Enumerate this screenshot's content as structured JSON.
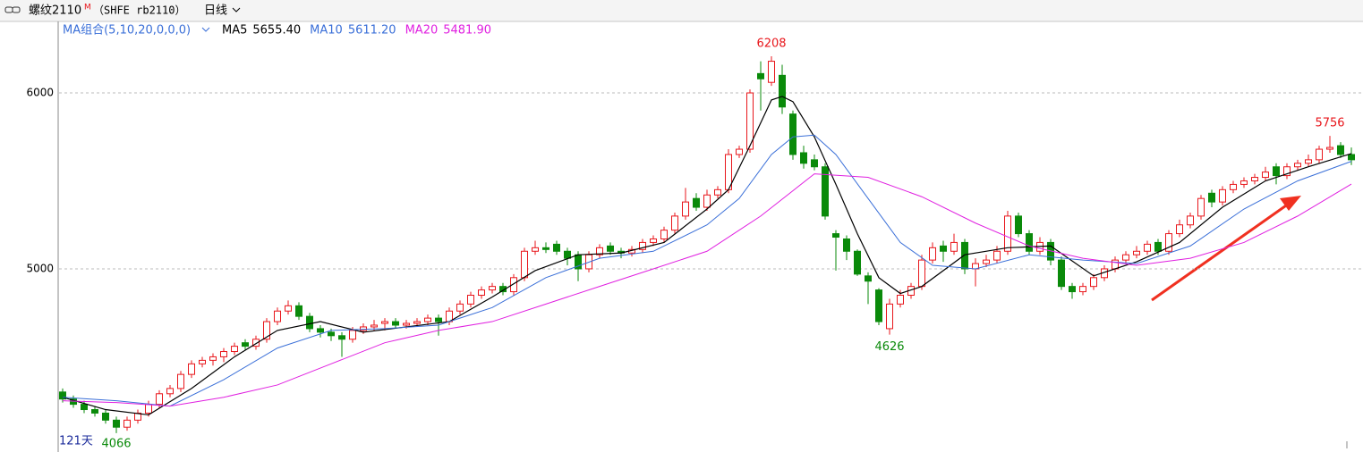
{
  "header": {
    "symbol": "螺纹2110",
    "flag": "M",
    "exchange": "（SHFE rb2110）",
    "period": "日线"
  },
  "chart_data": {
    "type": "candlestick",
    "ma_group": "MA组合(5,10,20,0,0,0)",
    "days_label": "121天",
    "ylim": [
      3964,
      6386
    ],
    "yticks": [
      5000,
      6000
    ],
    "grid": true,
    "up_color": "#e8161b",
    "down_color": "#0a8a0a",
    "candles": [
      [
        4300,
        4320,
        4240,
        4260
      ],
      [
        4260,
        4280,
        4210,
        4230
      ],
      [
        4230,
        4250,
        4180,
        4200
      ],
      [
        4200,
        4220,
        4160,
        4180
      ],
      [
        4180,
        4200,
        4120,
        4140
      ],
      [
        4140,
        4160,
        4066,
        4100
      ],
      [
        4100,
        4160,
        4080,
        4140
      ],
      [
        4140,
        4200,
        4120,
        4180
      ],
      [
        4180,
        4250,
        4160,
        4230
      ],
      [
        4230,
        4310,
        4210,
        4290
      ],
      [
        4290,
        4340,
        4270,
        4320
      ],
      [
        4320,
        4420,
        4300,
        4400
      ],
      [
        4400,
        4480,
        4380,
        4460
      ],
      [
        4460,
        4500,
        4440,
        4480
      ],
      [
        4480,
        4520,
        4450,
        4500
      ],
      [
        4500,
        4550,
        4470,
        4530
      ],
      [
        4530,
        4580,
        4510,
        4560
      ],
      [
        4580,
        4600,
        4540,
        4560
      ],
      [
        4560,
        4620,
        4540,
        4600
      ],
      [
        4600,
        4720,
        4580,
        4700
      ],
      [
        4700,
        4780,
        4680,
        4760
      ],
      [
        4760,
        4820,
        4740,
        4790
      ],
      [
        4790,
        4810,
        4710,
        4730
      ],
      [
        4730,
        4750,
        4640,
        4660
      ],
      [
        4660,
        4680,
        4610,
        4640
      ],
      [
        4640,
        4660,
        4590,
        4620
      ],
      [
        4620,
        4640,
        4500,
        4600
      ],
      [
        4600,
        4670,
        4580,
        4650
      ],
      [
        4650,
        4690,
        4630,
        4670
      ],
      [
        4670,
        4710,
        4650,
        4680
      ],
      [
        4690,
        4720,
        4650,
        4700
      ],
      [
        4700,
        4720,
        4660,
        4680
      ],
      [
        4680,
        4710,
        4660,
        4690
      ],
      [
        4690,
        4720,
        4670,
        4700
      ],
      [
        4700,
        4740,
        4680,
        4720
      ],
      [
        4720,
        4740,
        4620,
        4700
      ],
      [
        4700,
        4780,
        4680,
        4760
      ],
      [
        4760,
        4820,
        4740,
        4800
      ],
      [
        4800,
        4870,
        4780,
        4850
      ],
      [
        4850,
        4900,
        4830,
        4880
      ],
      [
        4880,
        4920,
        4860,
        4900
      ],
      [
        4900,
        4920,
        4850,
        4870
      ],
      [
        4870,
        4970,
        4850,
        4950
      ],
      [
        4950,
        5120,
        4930,
        5100
      ],
      [
        5100,
        5160,
        5080,
        5120
      ],
      [
        5120,
        5150,
        5090,
        5110
      ],
      [
        5140,
        5160,
        5080,
        5100
      ],
      [
        5100,
        5120,
        5020,
        5060
      ],
      [
        5080,
        5100,
        4930,
        5000
      ],
      [
        5000,
        5100,
        4980,
        5080
      ],
      [
        5080,
        5140,
        5060,
        5120
      ],
      [
        5130,
        5150,
        5080,
        5100
      ],
      [
        5100,
        5120,
        5060,
        5090
      ],
      [
        5090,
        5130,
        5070,
        5110
      ],
      [
        5110,
        5170,
        5090,
        5150
      ],
      [
        5150,
        5190,
        5130,
        5170
      ],
      [
        5170,
        5240,
        5150,
        5220
      ],
      [
        5220,
        5320,
        5200,
        5300
      ],
      [
        5300,
        5460,
        5280,
        5380
      ],
      [
        5400,
        5430,
        5330,
        5350
      ],
      [
        5350,
        5450,
        5330,
        5420
      ],
      [
        5420,
        5470,
        5400,
        5450
      ],
      [
        5450,
        5680,
        5430,
        5650
      ],
      [
        5650,
        5700,
        5630,
        5680
      ],
      [
        5680,
        6020,
        5660,
        6000
      ],
      [
        6110,
        6180,
        5900,
        6080
      ],
      [
        6060,
        6208,
        6040,
        6180
      ],
      [
        6100,
        6160,
        5880,
        5920
      ],
      [
        5880,
        5900,
        5620,
        5650
      ],
      [
        5660,
        5700,
        5570,
        5600
      ],
      [
        5620,
        5650,
        5560,
        5580
      ],
      [
        5580,
        5600,
        5280,
        5300
      ],
      [
        5200,
        5220,
        4990,
        5180
      ],
      [
        5170,
        5190,
        5050,
        5100
      ],
      [
        5100,
        5110,
        4960,
        4970
      ],
      [
        4960,
        4980,
        4800,
        4930
      ],
      [
        4880,
        4890,
        4680,
        4700
      ],
      [
        4660,
        4830,
        4626,
        4800
      ],
      [
        4800,
        4880,
        4780,
        4850
      ],
      [
        4850,
        4920,
        4830,
        4900
      ],
      [
        4900,
        5080,
        4880,
        5050
      ],
      [
        5050,
        5150,
        5030,
        5120
      ],
      [
        5130,
        5160,
        5040,
        5100
      ],
      [
        5100,
        5200,
        5080,
        5150
      ],
      [
        5150,
        5170,
        4970,
        5000
      ],
      [
        5000,
        5060,
        4900,
        5030
      ],
      [
        5030,
        5080,
        5010,
        5050
      ],
      [
        5050,
        5130,
        5030,
        5100
      ],
      [
        5100,
        5330,
        5080,
        5300
      ],
      [
        5300,
        5320,
        5180,
        5200
      ],
      [
        5200,
        5220,
        5080,
        5100
      ],
      [
        5100,
        5180,
        5080,
        5150
      ],
      [
        5150,
        5170,
        5020,
        5050
      ],
      [
        5050,
        5070,
        4880,
        4900
      ],
      [
        4900,
        4920,
        4830,
        4870
      ],
      [
        4870,
        4920,
        4850,
        4900
      ],
      [
        4900,
        4970,
        4880,
        4950
      ],
      [
        4950,
        5020,
        4930,
        5000
      ],
      [
        5000,
        5070,
        4980,
        5050
      ],
      [
        5050,
        5100,
        5030,
        5080
      ],
      [
        5080,
        5130,
        5060,
        5100
      ],
      [
        5100,
        5160,
        5080,
        5140
      ],
      [
        5150,
        5170,
        5080,
        5100
      ],
      [
        5100,
        5220,
        5080,
        5200
      ],
      [
        5200,
        5280,
        5180,
        5250
      ],
      [
        5250,
        5320,
        5230,
        5300
      ],
      [
        5300,
        5420,
        5280,
        5400
      ],
      [
        5430,
        5450,
        5350,
        5380
      ],
      [
        5380,
        5470,
        5360,
        5450
      ],
      [
        5450,
        5500,
        5430,
        5480
      ],
      [
        5480,
        5520,
        5460,
        5500
      ],
      [
        5500,
        5540,
        5480,
        5520
      ],
      [
        5520,
        5580,
        5500,
        5550
      ],
      [
        5580,
        5600,
        5480,
        5530
      ],
      [
        5530,
        5600,
        5510,
        5580
      ],
      [
        5580,
        5620,
        5560,
        5600
      ],
      [
        5600,
        5650,
        5580,
        5620
      ],
      [
        5620,
        5700,
        5600,
        5680
      ],
      [
        5680,
        5756,
        5660,
        5690
      ],
      [
        5700,
        5720,
        5630,
        5650
      ],
      [
        5650,
        5690,
        5590,
        5620
      ]
    ],
    "series": [
      {
        "name": "MA5",
        "value_label": "5655.40",
        "color": "#000000",
        "x": [
          0,
          4,
          8,
          12,
          16,
          20,
          24,
          28,
          32,
          36,
          40,
          44,
          48,
          52,
          56,
          60,
          62,
          64,
          66,
          67,
          68,
          70,
          72,
          74,
          76,
          78,
          80,
          84,
          88,
          92,
          96,
          100,
          104,
          108,
          112,
          116,
          120
        ],
        "values": [
          4270,
          4200,
          4170,
          4320,
          4500,
          4650,
          4700,
          4640,
          4670,
          4700,
          4840,
          4990,
          5080,
          5090,
          5150,
          5340,
          5450,
          5700,
          5960,
          5980,
          5950,
          5750,
          5480,
          5200,
          4950,
          4860,
          4900,
          5080,
          5120,
          5130,
          4960,
          5040,
          5150,
          5350,
          5500,
          5580,
          5655
        ]
      },
      {
        "name": "MA10",
        "value_label": "5611.20",
        "color": "#3a6fd8",
        "x": [
          0,
          5,
          10,
          15,
          20,
          25,
          30,
          35,
          40,
          45,
          50,
          55,
          60,
          63,
          66,
          68,
          70,
          72,
          75,
          78,
          81,
          85,
          90,
          95,
          100,
          105,
          110,
          115,
          120
        ],
        "values": [
          4270,
          4250,
          4220,
          4370,
          4550,
          4650,
          4660,
          4680,
          4780,
          4950,
          5060,
          5100,
          5250,
          5400,
          5650,
          5750,
          5760,
          5650,
          5400,
          5150,
          5020,
          5000,
          5080,
          5050,
          5030,
          5130,
          5340,
          5500,
          5611
        ]
      },
      {
        "name": "MA20",
        "value_label": "5481.90",
        "color": "#e020e0",
        "x": [
          0,
          5,
          10,
          15,
          20,
          25,
          30,
          35,
          40,
          45,
          50,
          55,
          60,
          65,
          70,
          75,
          80,
          85,
          90,
          95,
          100,
          105,
          110,
          115,
          120
        ],
        "values": [
          4250,
          4240,
          4220,
          4270,
          4340,
          4460,
          4580,
          4650,
          4700,
          4800,
          4900,
          5000,
          5100,
          5300,
          5540,
          5520,
          5410,
          5260,
          5130,
          5060,
          5020,
          5060,
          5150,
          5300,
          5482
        ]
      }
    ],
    "annotations": [
      {
        "index": 66,
        "value": 6208,
        "color": "#e8161b",
        "side": "top"
      },
      {
        "index": 77,
        "value": 4626,
        "color": "#0a8a0a",
        "side": "bottom"
      },
      {
        "index": 5,
        "value": 4066,
        "color": "#0a8a0a",
        "side": "bottom"
      },
      {
        "index": 118,
        "value": 5756,
        "color": "#e8161b",
        "side": "top"
      }
    ]
  }
}
